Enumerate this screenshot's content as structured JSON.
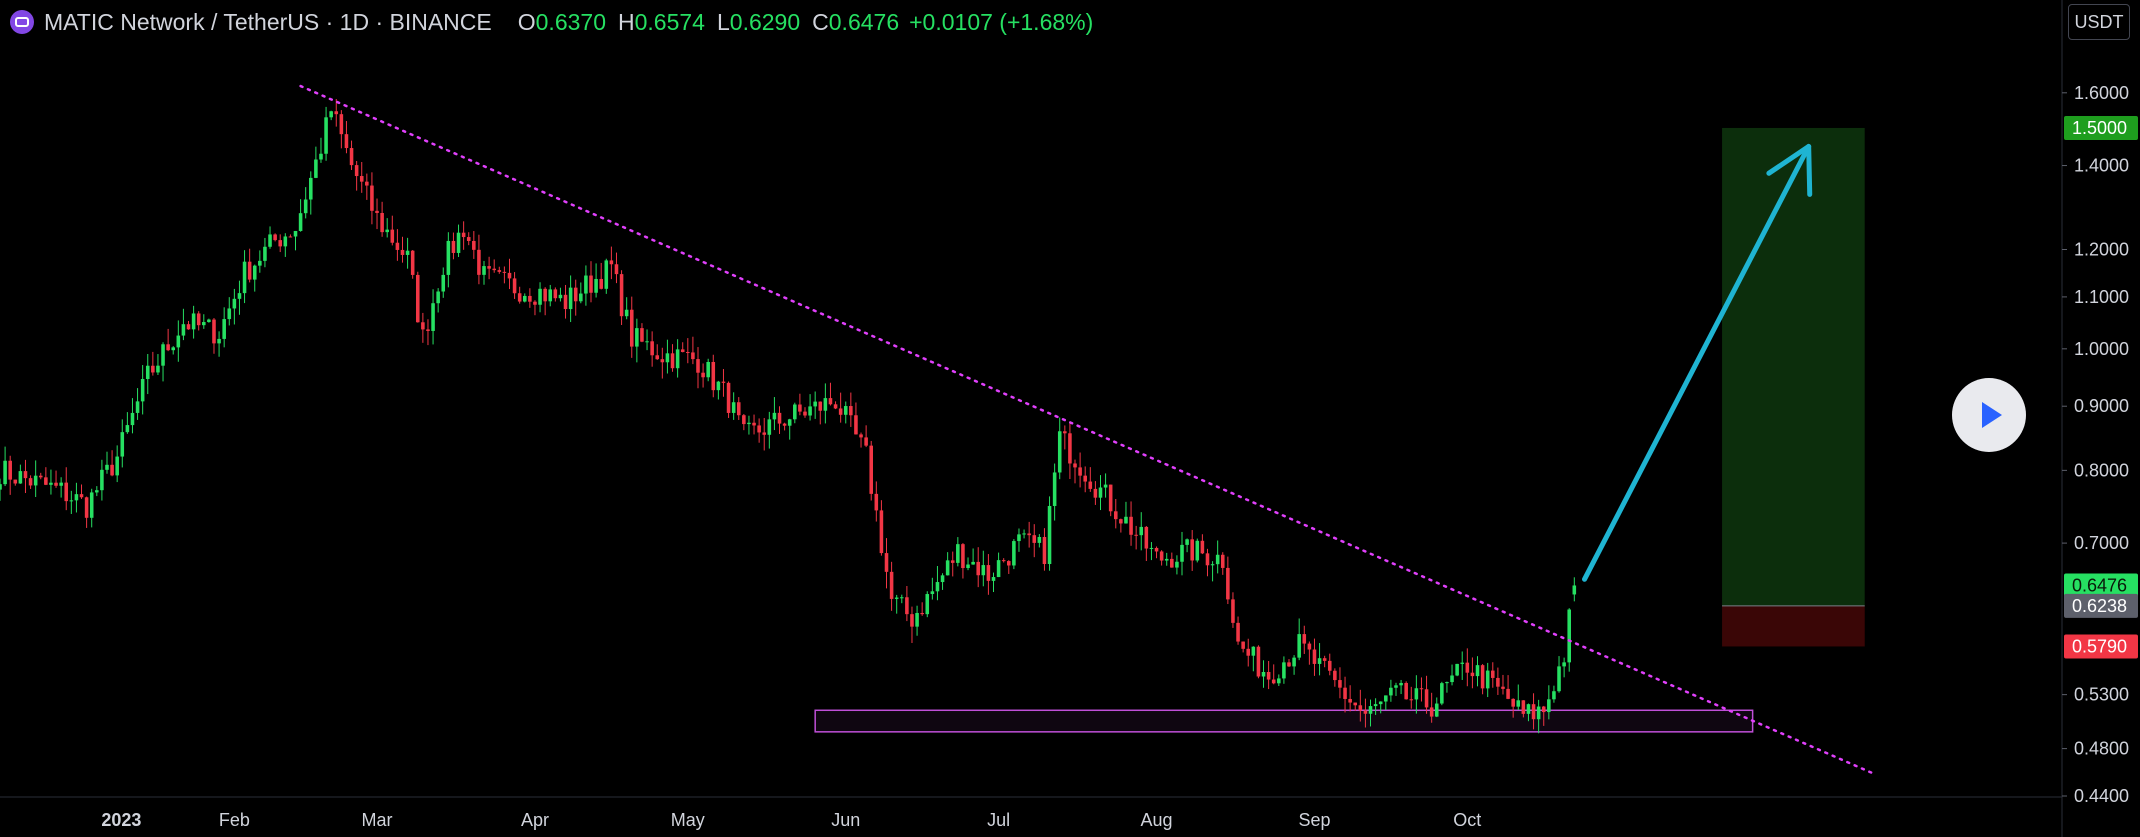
{
  "header": {
    "symbol": "MATIC Network / TetherUS · 1D · BINANCE",
    "o_label": "O",
    "o_value": "0.6370",
    "h_label": "H",
    "h_value": "0.6574",
    "l_label": "L",
    "l_value": "0.6290",
    "c_label": "C",
    "c_value": "0.6476",
    "change": "+0.0107 (+1.68%)"
  },
  "currency_button": "USDT",
  "colors": {
    "background": "#000000",
    "up": "#26e062",
    "down": "#f23645",
    "trendline": "#e040fb",
    "support_zone": "#c04fd8",
    "arrow": "#1fb4d2",
    "profit_zone": "#0c2e0c",
    "loss_zone": "#3a0606",
    "label_green": "#1e9e1e",
    "label_red": "#f23645",
    "label_gray": "#5d606b"
  },
  "chart_data": {
    "type": "candlestick",
    "symbol": "MATICUSDT",
    "interval": "1D",
    "exchange": "BINANCE",
    "y_scale": "log",
    "ylim": [
      0.44,
      1.75
    ],
    "y_ticks": [
      "1.6000",
      "1.4000",
      "1.2000",
      "1.1000",
      "1.0000",
      "0.9000",
      "0.8000",
      "0.7000",
      "0.5300",
      "0.4800",
      "0.4400"
    ],
    "x_ticks": [
      "2023",
      "Feb",
      "Mar",
      "Apr",
      "May",
      "Jun",
      "Jul",
      "Aug",
      "Sep",
      "Oct"
    ],
    "x_tick_dates": [
      "2023-01-01",
      "2023-02-01",
      "2023-03-01",
      "2023-04-01",
      "2023-05-01",
      "2023-06-01",
      "2023-07-01",
      "2023-08-01",
      "2023-09-01",
      "2023-10-01"
    ],
    "x_range": [
      "2022-12-17",
      "2023-12-21"
    ],
    "price_labels": [
      {
        "text": "1.5000",
        "value": 1.5,
        "color": "label_green"
      },
      {
        "text": "0.6476",
        "value": 0.6476,
        "color": "up"
      },
      {
        "text": "0.6238",
        "value": 0.6238,
        "color": "label_gray"
      },
      {
        "text": "0.5790",
        "value": 0.579,
        "color": "label_red"
      }
    ],
    "close_anchors": [
      [
        "2022-12-17",
        0.8
      ],
      [
        "2022-12-29",
        0.77
      ],
      [
        "2023-01-03",
        0.75
      ],
      [
        "2023-01-09",
        0.82
      ],
      [
        "2023-01-15",
        0.95
      ],
      [
        "2023-01-22",
        1.05
      ],
      [
        "2023-01-29",
        1.03
      ],
      [
        "2023-02-03",
        1.15
      ],
      [
        "2023-02-09",
        1.22
      ],
      [
        "2023-02-13",
        1.25
      ],
      [
        "2023-02-18",
        1.45
      ],
      [
        "2023-02-20",
        1.55
      ],
      [
        "2023-02-24",
        1.4
      ],
      [
        "2023-03-01",
        1.27
      ],
      [
        "2023-03-07",
        1.18
      ],
      [
        "2023-03-10",
        1.02
      ],
      [
        "2023-03-14",
        1.17
      ],
      [
        "2023-03-18",
        1.25
      ],
      [
        "2023-03-22",
        1.14
      ],
      [
        "2023-03-28",
        1.12
      ],
      [
        "2023-04-02",
        1.11
      ],
      [
        "2023-04-07",
        1.09
      ],
      [
        "2023-04-12",
        1.13
      ],
      [
        "2023-04-16",
        1.16
      ],
      [
        "2023-04-20",
        1.02
      ],
      [
        "2023-04-26",
        0.99
      ],
      [
        "2023-05-03",
        0.98
      ],
      [
        "2023-05-09",
        0.91
      ],
      [
        "2023-05-12",
        0.85
      ],
      [
        "2023-05-20",
        0.88
      ],
      [
        "2023-05-27",
        0.9
      ],
      [
        "2023-05-30",
        0.91
      ],
      [
        "2023-06-05",
        0.82
      ],
      [
        "2023-06-10",
        0.63
      ],
      [
        "2023-06-14",
        0.61
      ],
      [
        "2023-06-18",
        0.64
      ],
      [
        "2023-06-23",
        0.69
      ],
      [
        "2023-06-29",
        0.66
      ],
      [
        "2023-07-05",
        0.7
      ],
      [
        "2023-07-10",
        0.69
      ],
      [
        "2023-07-13",
        0.85
      ],
      [
        "2023-07-20",
        0.78
      ],
      [
        "2023-07-27",
        0.72
      ],
      [
        "2023-08-01",
        0.68
      ],
      [
        "2023-08-08",
        0.69
      ],
      [
        "2023-08-14",
        0.68
      ],
      [
        "2023-08-17",
        0.58
      ],
      [
        "2023-08-23",
        0.55
      ],
      [
        "2023-08-29",
        0.58
      ],
      [
        "2023-09-05",
        0.54
      ],
      [
        "2023-09-11",
        0.51
      ],
      [
        "2023-09-17",
        0.53
      ],
      [
        "2023-09-24",
        0.52
      ],
      [
        "2023-10-01",
        0.56
      ],
      [
        "2023-10-08",
        0.53
      ],
      [
        "2023-10-12",
        0.51
      ],
      [
        "2023-10-16",
        0.515
      ],
      [
        "2023-10-20",
        0.57
      ],
      [
        "2023-10-22",
        0.6476
      ]
    ],
    "last_candle": {
      "date": "2023-10-22",
      "open": 0.637,
      "high": 0.6574,
      "low": 0.629,
      "close": 0.6476
    },
    "annotations": {
      "trendline": {
        "start": [
          "2023-02-14",
          1.62
        ],
        "end": [
          "2023-12-20",
          0.458
        ],
        "style": "dotted"
      },
      "support_zone": {
        "date_from": "2023-05-26",
        "date_to": "2023-11-26",
        "price_high": 0.515,
        "price_low": 0.495
      },
      "long_position": {
        "date_from": "2023-11-20",
        "date_to": "2023-12-18",
        "entry": 0.6238,
        "target": 1.5,
        "stop": 0.579
      },
      "arrow": {
        "start": [
          "2023-10-24",
          0.655
        ],
        "end": [
          "2023-12-07",
          1.45
        ]
      }
    }
  }
}
